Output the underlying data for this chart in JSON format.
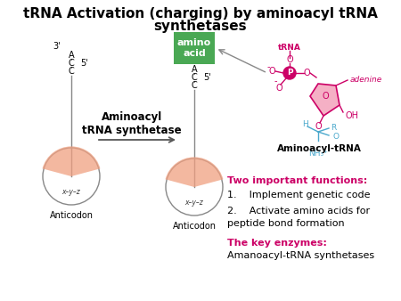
{
  "title_line1": "tRNA Activation (charging) by aminoacyl tRNA",
  "title_line2": "synthetases",
  "title_fontsize": 11,
  "title_color": "#000000",
  "bg_color": "#ffffff",
  "amino_acid_box_color": "#4aa854",
  "amino_acid_text": "amino\nacid",
  "amino_acid_text_color": "#ffffff",
  "anticodon_color": "#f0a080",
  "arrow_color": "#555555",
  "trna_color": "#cc0066",
  "adenine_color": "#cc0066",
  "functions_header": "Two important functions:",
  "functions_header_color": "#cc0066",
  "function1": "1.    Implement genetic code",
  "function2_a": "2.    Activate amino acids for",
  "function2_b": "peptide bond formation",
  "functions_color": "#000000",
  "enzymes_header": "The key enzymes:",
  "enzymes_header_color": "#cc0066",
  "enzymes_text": "Amanoacyl-tRNA synthetases",
  "enzymes_text_color": "#000000",
  "label_aminoacyl": "Aminoacyl",
  "label_trna_synthetase": "tRNA synthetase",
  "label_aminoacyl_tRNA": "Aminoacyl-tRNA",
  "label_anticodon": "Anticodon",
  "tRNA_label": "tRNA",
  "adenine_label": "adenine",
  "cyan_color": "#4aa8cc"
}
